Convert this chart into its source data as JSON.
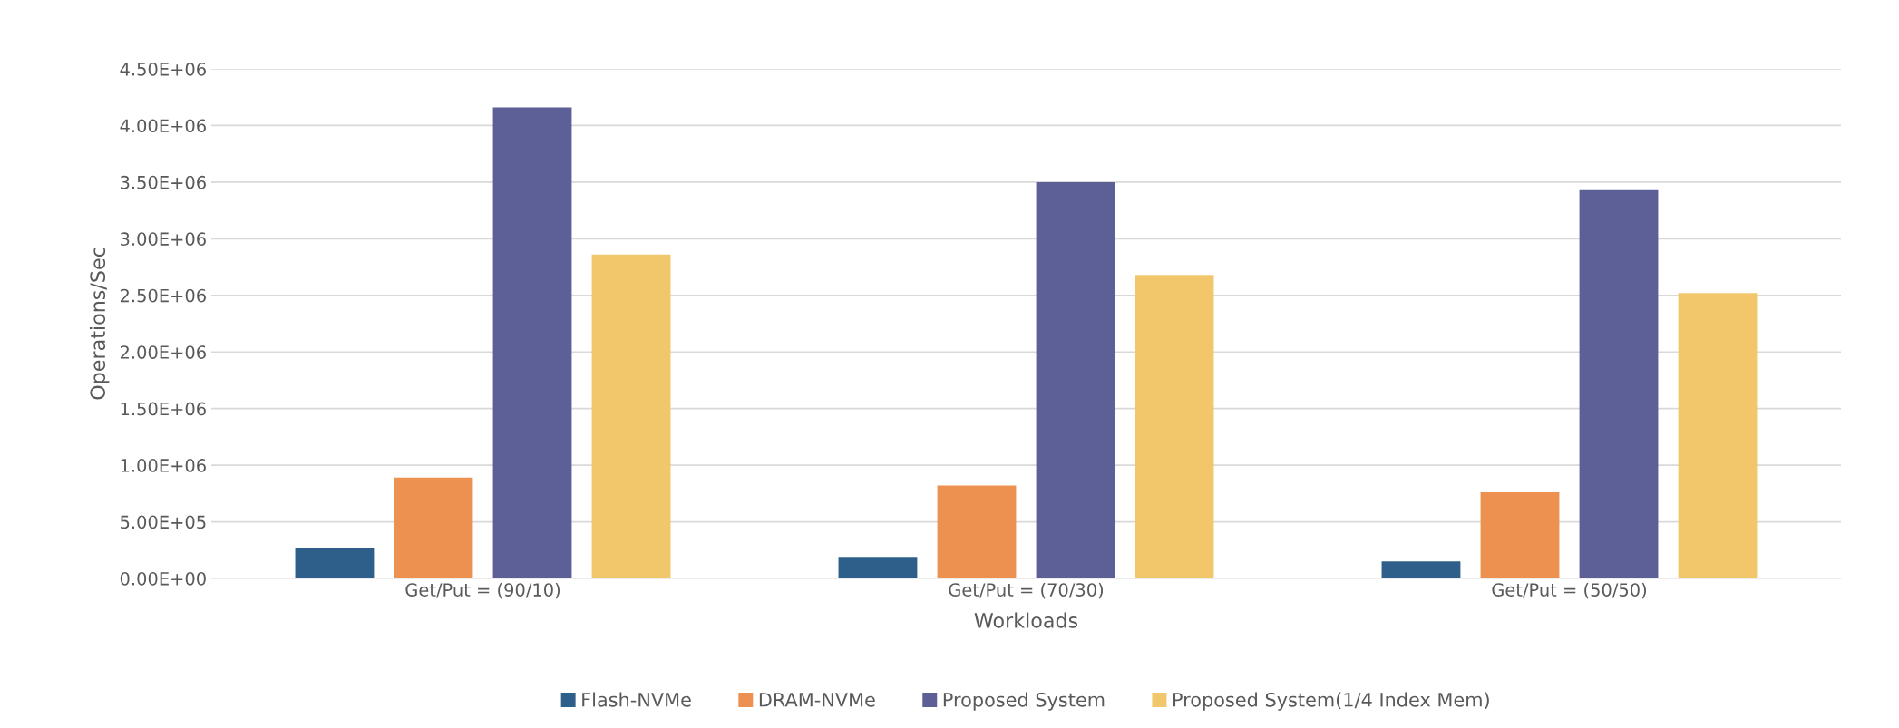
{
  "chart_data": {
    "type": "bar",
    "xlabel": "Workloads",
    "ylabel": "Operations/Sec",
    "categories": [
      "Get/Put = (90/10)",
      "Get/Put = (70/30)",
      "Get/Put = (50/50)"
    ],
    "series": [
      {
        "name": "Flash-NVMe",
        "color": "#2e5f8a",
        "values": [
          270000,
          190000,
          150000
        ]
      },
      {
        "name": "DRAM-NVMe",
        "color": "#ed9150",
        "values": [
          890000,
          820000,
          760000
        ]
      },
      {
        "name": "Proposed System",
        "color": "#5d6096",
        "values": [
          4160000,
          3500000,
          3430000
        ]
      },
      {
        "name": "Proposed System(1/4 Index Mem)",
        "color": "#f2c76c",
        "values": [
          2860000,
          2680000,
          2520000
        ]
      }
    ],
    "ylim": [
      0,
      4500000
    ],
    "yticks": [
      {
        "value": 0,
        "label": "0.00E+00"
      },
      {
        "value": 500000,
        "label": "5.00E+05"
      },
      {
        "value": 1000000,
        "label": "1.00E+06"
      },
      {
        "value": 1500000,
        "label": "1.50E+06"
      },
      {
        "value": 2000000,
        "label": "2.00E+06"
      },
      {
        "value": 2500000,
        "label": "2.50E+06"
      },
      {
        "value": 3000000,
        "label": "3.00E+06"
      },
      {
        "value": 3500000,
        "label": "3.50E+06"
      },
      {
        "value": 4000000,
        "label": "4.00E+06"
      },
      {
        "value": 4500000,
        "label": "4.50E+06"
      }
    ],
    "grid": "y",
    "legend": "bottom"
  }
}
